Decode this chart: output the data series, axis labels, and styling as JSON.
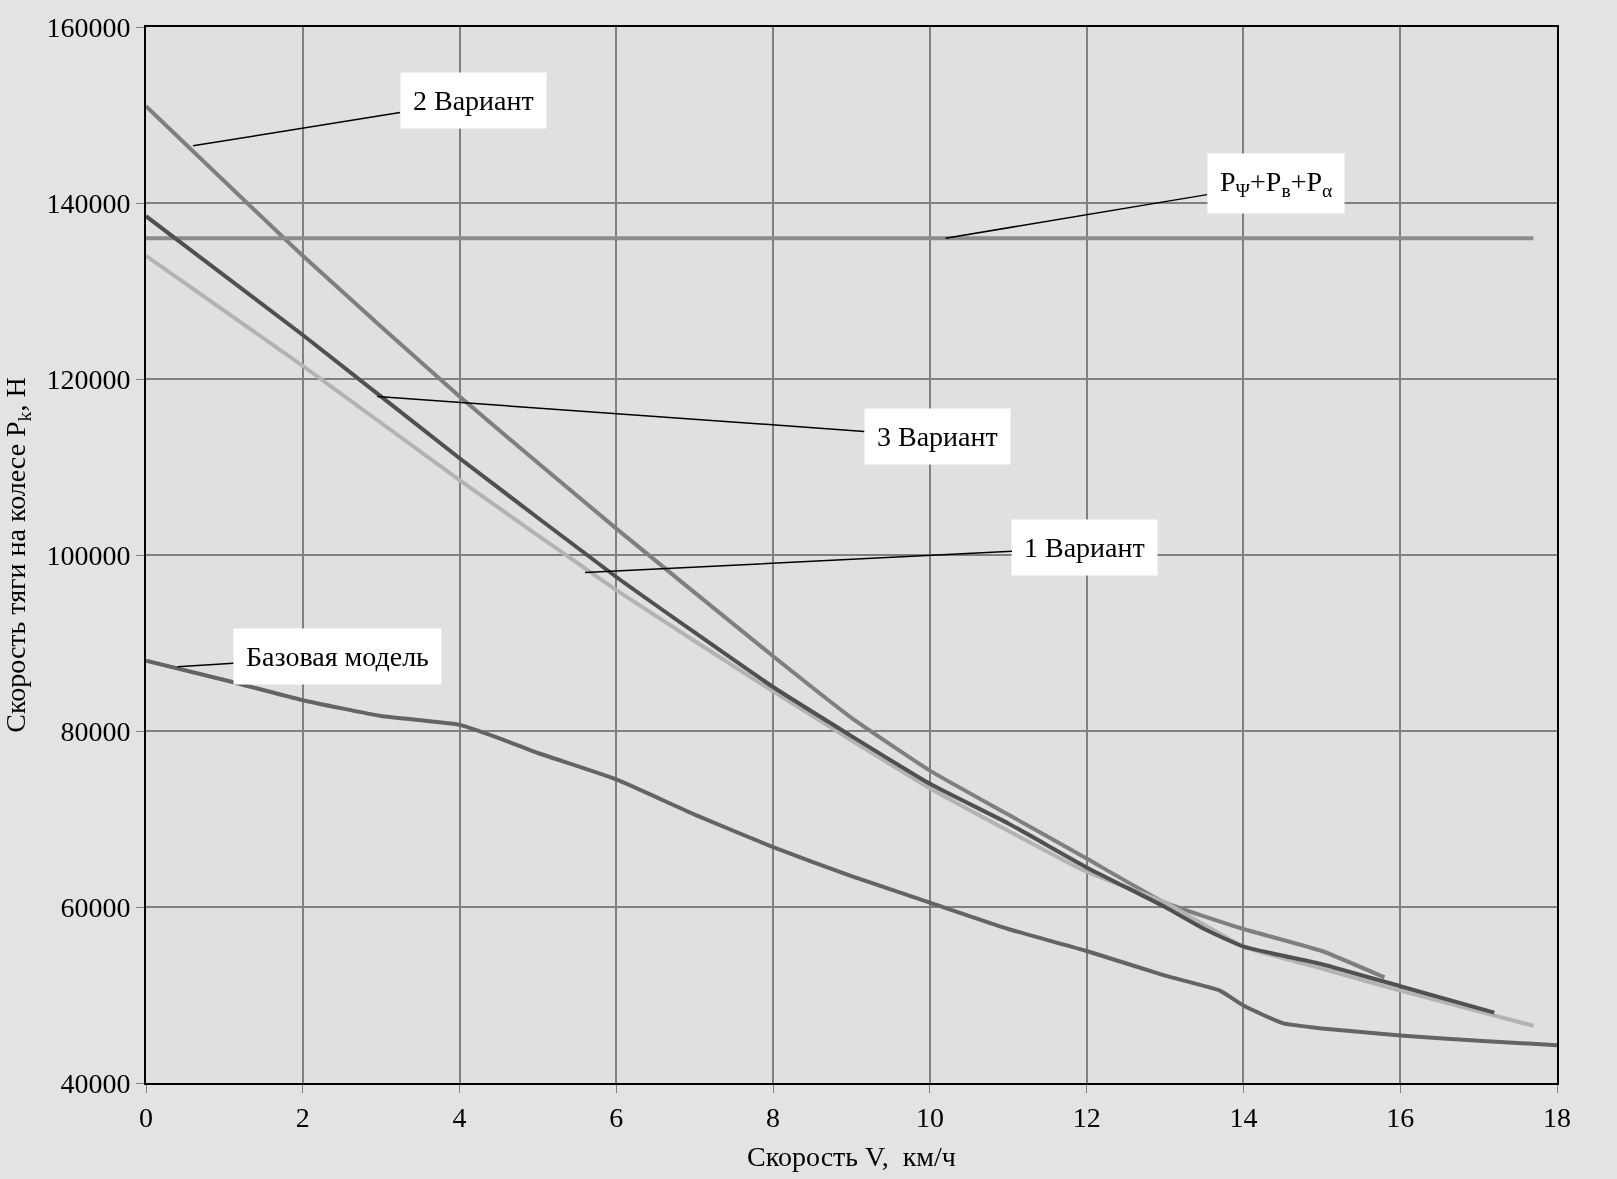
{
  "chart_data": {
    "type": "line",
    "xlabel": "Скорость V,  км/ч",
    "ylabel": "Скорость тяги на колесе P$_{k}$, Н",
    "xlim": [
      0,
      18
    ],
    "xticks": [
      0,
      2,
      4,
      6,
      8,
      10,
      12,
      14,
      16,
      18
    ],
    "ylim": [
      40000,
      160000
    ],
    "yticks": [
      40000,
      60000,
      80000,
      100000,
      120000,
      140000,
      160000
    ],
    "grid": true,
    "marker": "none",
    "line_style": "solid",
    "series": [
      {
        "color": "#7f7f7f",
        "x": [
          0,
          2,
          4,
          6,
          8,
          9,
          10,
          11,
          12,
          13,
          14,
          15,
          15.8
        ],
        "values": [
          151000,
          134000,
          118000,
          103000,
          88500,
          81500,
          75500,
          70500,
          65500,
          60500,
          57500,
          55000,
          52000
        ]
      },
      {
        "color": "#8c8c8c",
        "x": [
          0,
          17.7
        ],
        "values": [
          136000,
          136000
        ]
      },
      {
        "color": "#b3b3b3",
        "x": [
          0,
          2,
          4,
          6,
          8,
          10,
          12,
          13,
          14,
          15,
          16,
          17.7
        ],
        "values": [
          134000,
          121500,
          108500,
          96000,
          84500,
          73500,
          64000,
          60500,
          55500,
          53000,
          50500,
          46500
        ]
      },
      {
        "color": "#505050",
        "x": [
          0,
          2,
          4,
          6,
          8,
          10,
          11,
          12,
          13,
          13.5,
          14,
          15,
          16,
          17.2
        ],
        "values": [
          138500,
          125000,
          111000,
          97500,
          85000,
          74000,
          69500,
          64500,
          60000,
          57500,
          55500,
          53500,
          51000,
          48000
        ]
      },
      {
        "color": "#646464",
        "x": [
          0,
          1,
          2,
          3,
          4,
          4.5,
          5,
          6,
          7,
          8,
          9,
          10,
          11,
          12,
          13,
          13.7,
          14,
          14.5,
          15,
          16,
          17,
          18
        ],
        "values": [
          88000,
          85800,
          83500,
          81700,
          80700,
          79200,
          77500,
          74500,
          70500,
          66800,
          63500,
          60500,
          57500,
          55000,
          52200,
          50500,
          48800,
          46800,
          46200,
          45400,
          44800,
          44300
        ]
      }
    ],
    "annotations": [
      {
        "text": "2 Вариант",
        "x": 0.6,
        "y": 146500
      },
      {
        "text": "P$_{Ψ}$+P$_{в}$+P$_{α}$",
        "x": 10.2,
        "y": 136000
      },
      {
        "text": "3 Вариант",
        "x": 2.95,
        "y": 118000
      },
      {
        "text": "1 Вариант",
        "x": 5.6,
        "y": 98000
      },
      {
        "text": "Базовая модель",
        "x": 0.4,
        "y": 87300
      }
    ]
  }
}
